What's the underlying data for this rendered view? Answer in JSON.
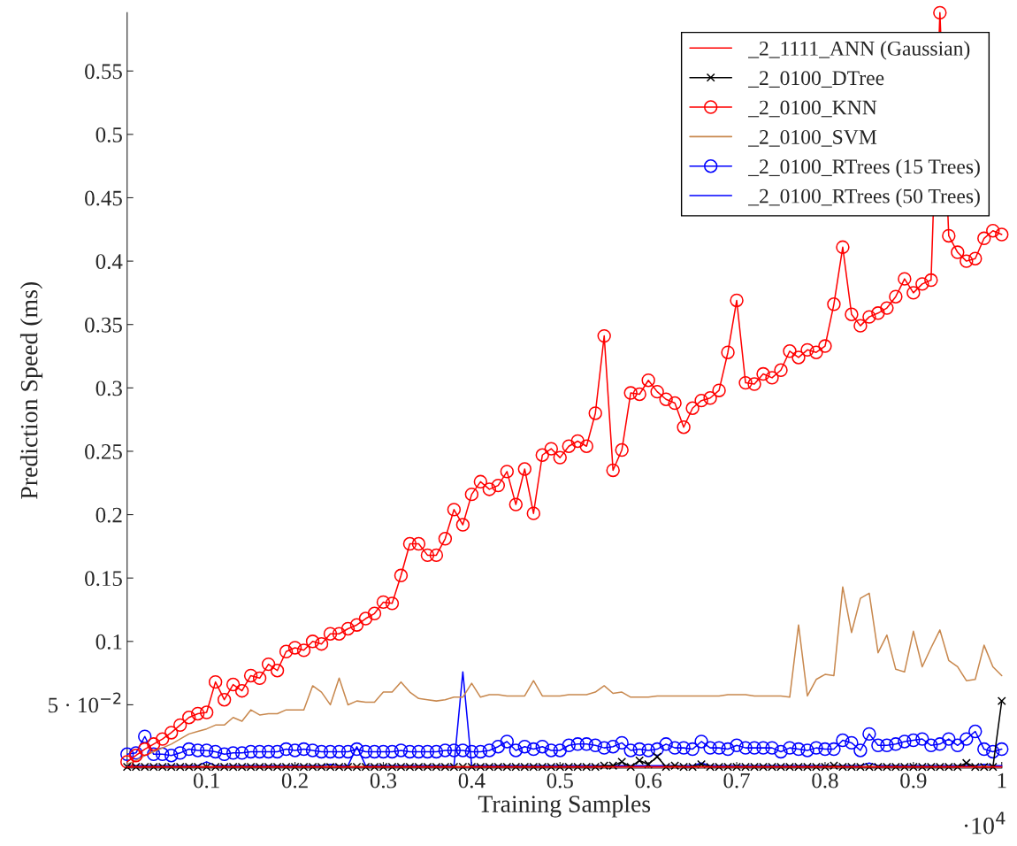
{
  "chart_data": {
    "type": "line",
    "xlabel": "Training Samples",
    "ylabel": "Prediction Speed (ms)",
    "x": [
      0.01,
      0.02,
      0.03,
      0.04,
      0.05,
      0.06,
      0.07,
      0.08,
      0.09,
      0.1,
      0.11,
      0.12,
      0.13,
      0.14,
      0.15,
      0.16,
      0.17,
      0.18,
      0.19,
      0.2,
      0.21,
      0.22,
      0.23,
      0.24,
      0.25,
      0.26,
      0.27,
      0.28,
      0.29,
      0.3,
      0.31,
      0.32,
      0.33,
      0.34,
      0.35,
      0.36,
      0.37,
      0.38,
      0.39,
      0.4,
      0.41,
      0.42,
      0.43,
      0.44,
      0.45,
      0.46,
      0.47,
      0.48,
      0.49,
      0.5,
      0.51,
      0.52,
      0.53,
      0.54,
      0.55,
      0.56,
      0.57,
      0.58,
      0.59,
      0.6,
      0.61,
      0.62,
      0.63,
      0.64,
      0.65,
      0.66,
      0.67,
      0.68,
      0.69,
      0.7,
      0.71,
      0.72,
      0.73,
      0.74,
      0.75,
      0.76,
      0.77,
      0.78,
      0.79,
      0.8,
      0.81,
      0.82,
      0.83,
      0.84,
      0.85,
      0.86,
      0.87,
      0.88,
      0.89,
      0.9,
      0.91,
      0.92,
      0.93,
      0.94,
      0.95,
      0.96,
      0.97,
      0.98,
      0.99,
      1
    ],
    "xlim": [
      0.01,
      1
    ],
    "ylim": [
      0,
      0.596
    ],
    "xticks": [
      0.1,
      0.2,
      0.3,
      0.4,
      0.5,
      0.6,
      0.7,
      0.8,
      0.9,
      1
    ],
    "yticks": [
      {
        "value": 0.05,
        "label": "5 · 10$^{−2}$"
      },
      0.1,
      0.15,
      0.2,
      0.25,
      0.3,
      0.35,
      0.4,
      0.45,
      0.5,
      0.55
    ],
    "annotations": [
      "·10$^{4}$"
    ],
    "legend": "top right",
    "grid": false,
    "series": [
      {
        "name": "_2_1111_ANN (Gaussian)",
        "color": "#ff0000",
        "marker": "none",
        "values": [
          0.001,
          0.001,
          0.001,
          0.001,
          0.001,
          0.001,
          0.001,
          0.001,
          0.001,
          0.001,
          0.001,
          0.001,
          0.001,
          0.001,
          0.001,
          0.001,
          0.001,
          0.001,
          0.001,
          0.001,
          0.001,
          0.001,
          0.001,
          0.001,
          0.001,
          0.001,
          0.001,
          0.001,
          0.001,
          0.001,
          0.001,
          0.001,
          0.001,
          0.001,
          0.001,
          0.001,
          0.001,
          0.001,
          0.001,
          0.001,
          0.001,
          0.001,
          0.001,
          0.001,
          0.001,
          0.001,
          0.001,
          0.001,
          0.001,
          0.001,
          0.001,
          0.001,
          0.001,
          0.001,
          0.001,
          0.001,
          0.001,
          0.001,
          0.001,
          0.001,
          0.001,
          0.001,
          0.001,
          0.001,
          0.001,
          0.001,
          0.001,
          0.001,
          0.001,
          0.001,
          0.001,
          0.001,
          0.001,
          0.001,
          0.001,
          0.001,
          0.001,
          0.001,
          0.001,
          0.001,
          0.001,
          0.001,
          0.001,
          0.001,
          0.001,
          0.001,
          0.001,
          0.001,
          0.001,
          0.001,
          0.001,
          0.001,
          0.001,
          0.001,
          0.001,
          0.001,
          0.001,
          0.001,
          0.001,
          0.001
        ]
      },
      {
        "name": "_2_0100_DTree",
        "color": "#000000",
        "marker": "cross",
        "values": [
          0.001,
          0.001,
          0.001,
          0.001,
          0.001,
          0.001,
          0.001,
          0.001,
          0.001,
          0.001,
          0.001,
          0.001,
          0.001,
          0.001,
          0.001,
          0.001,
          0.001,
          0.001,
          0.001,
          0.001,
          0.001,
          0.001,
          0.001,
          0.001,
          0.001,
          0.001,
          0.001,
          0.001,
          0.001,
          0.001,
          0.001,
          0.001,
          0.001,
          0.001,
          0.001,
          0.001,
          0.001,
          0.001,
          0.001,
          0.001,
          0.001,
          0.001,
          0.001,
          0.001,
          0.001,
          0.001,
          0.001,
          0.001,
          0.001,
          0.001,
          0.001,
          0.001,
          0.001,
          0.001,
          0.002,
          0.002,
          0.005,
          0.001,
          0.006,
          0.003,
          0.009,
          0.001,
          0.002,
          0.001,
          0.001,
          0.003,
          0.001,
          0.001,
          0.001,
          0.001,
          0.001,
          0.001,
          0.001,
          0.001,
          0.001,
          0.001,
          0.001,
          0.001,
          0.001,
          0.001,
          0.002,
          0.001,
          0.001,
          0.001,
          0.001,
          0.001,
          0.001,
          0.001,
          0.001,
          0.001,
          0.001,
          0.001,
          0.001,
          0.001,
          0.001,
          0.004,
          0.001,
          0.001,
          0.001,
          0.053
        ]
      },
      {
        "name": "_2_0100_KNN",
        "color": "#ff0000",
        "marker": "circle",
        "values": [
          0.005,
          0.01,
          0.015,
          0.019,
          0.023,
          0.028,
          0.034,
          0.04,
          0.043,
          0.044,
          0.068,
          0.054,
          0.066,
          0.061,
          0.073,
          0.071,
          0.082,
          0.077,
          0.092,
          0.095,
          0.093,
          0.1,
          0.098,
          0.106,
          0.106,
          0.11,
          0.113,
          0.118,
          0.122,
          0.131,
          0.13,
          0.152,
          0.177,
          0.177,
          0.168,
          0.168,
          0.181,
          0.204,
          0.192,
          0.216,
          0.226,
          0.22,
          0.223,
          0.234,
          0.208,
          0.236,
          0.201,
          0.247,
          0.252,
          0.245,
          0.254,
          0.258,
          0.254,
          0.28,
          0.341,
          0.235,
          0.251,
          0.296,
          0.295,
          0.306,
          0.297,
          0.291,
          0.288,
          0.269,
          0.284,
          0.29,
          0.292,
          0.298,
          0.328,
          0.369,
          0.304,
          0.303,
          0.311,
          0.308,
          0.314,
          0.329,
          0.324,
          0.33,
          0.328,
          0.333,
          0.366,
          0.411,
          0.358,
          0.349,
          0.356,
          0.359,
          0.363,
          0.372,
          0.386,
          0.375,
          0.382,
          0.385,
          0.596,
          0.42,
          0.407,
          0.4,
          0.402,
          0.418,
          0.424,
          0.421
        ]
      },
      {
        "name": "_2_0100_SVM",
        "color": "#c8884e",
        "marker": "none",
        "values": [
          0.003,
          0.006,
          0.01,
          0.013,
          0.016,
          0.019,
          0.023,
          0.027,
          0.029,
          0.031,
          0.034,
          0.034,
          0.04,
          0.037,
          0.046,
          0.042,
          0.043,
          0.043,
          0.046,
          0.046,
          0.046,
          0.065,
          0.06,
          0.05,
          0.071,
          0.05,
          0.053,
          0.052,
          0.052,
          0.06,
          0.06,
          0.068,
          0.06,
          0.055,
          0.054,
          0.053,
          0.054,
          0.056,
          0.056,
          0.067,
          0.056,
          0.058,
          0.058,
          0.057,
          0.057,
          0.057,
          0.069,
          0.057,
          0.057,
          0.057,
          0.058,
          0.058,
          0.058,
          0.06,
          0.065,
          0.059,
          0.06,
          0.056,
          0.056,
          0.056,
          0.057,
          0.057,
          0.057,
          0.057,
          0.057,
          0.057,
          0.057,
          0.057,
          0.058,
          0.058,
          0.058,
          0.057,
          0.057,
          0.057,
          0.057,
          0.056,
          0.113,
          0.057,
          0.07,
          0.074,
          0.073,
          0.143,
          0.107,
          0.134,
          0.138,
          0.091,
          0.105,
          0.078,
          0.076,
          0.108,
          0.08,
          0.095,
          0.109,
          0.085,
          0.08,
          0.069,
          0.07,
          0.097,
          0.08,
          0.073
        ]
      },
      {
        "name": "_2_0100_RTrees (15 Trees)",
        "color": "#0000ff",
        "marker": "circle",
        "values": [
          0.011,
          0.012,
          0.025,
          0.011,
          0.011,
          0.01,
          0.012,
          0.015,
          0.014,
          0.014,
          0.013,
          0.011,
          0.012,
          0.012,
          0.013,
          0.013,
          0.013,
          0.013,
          0.015,
          0.014,
          0.015,
          0.014,
          0.013,
          0.013,
          0.013,
          0.013,
          0.015,
          0.013,
          0.013,
          0.013,
          0.013,
          0.014,
          0.013,
          0.013,
          0.013,
          0.013,
          0.014,
          0.014,
          0.014,
          0.013,
          0.013,
          0.014,
          0.017,
          0.021,
          0.014,
          0.017,
          0.015,
          0.017,
          0.014,
          0.014,
          0.018,
          0.019,
          0.019,
          0.018,
          0.016,
          0.017,
          0.02,
          0.014,
          0.015,
          0.014,
          0.015,
          0.019,
          0.016,
          0.016,
          0.015,
          0.021,
          0.016,
          0.016,
          0.015,
          0.018,
          0.016,
          0.016,
          0.016,
          0.016,
          0.013,
          0.016,
          0.015,
          0.014,
          0.016,
          0.015,
          0.015,
          0.022,
          0.02,
          0.014,
          0.027,
          0.018,
          0.018,
          0.019,
          0.021,
          0.022,
          0.023,
          0.018,
          0.019,
          0.023,
          0.018,
          0.023,
          0.029,
          0.015,
          0.013,
          0.015
        ]
      },
      {
        "name": "_2_0100_RTrees (50 Trees)",
        "color": "#0000ff",
        "marker": "none",
        "values": [
          0.002,
          0.002,
          0.002,
          0.002,
          0.002,
          0.002,
          0.002,
          0.002,
          0.002,
          0.005,
          0.002,
          0.002,
          0.002,
          0.002,
          0.002,
          0.002,
          0.002,
          0.002,
          0.002,
          0.002,
          0.002,
          0.002,
          0.002,
          0.003,
          0.002,
          0.002,
          0.017,
          0.002,
          0.002,
          0.002,
          0.002,
          0.002,
          0.002,
          0.002,
          0.002,
          0.002,
          0.002,
          0.002,
          0.076,
          0.002,
          0.002,
          0.002,
          0.002,
          0.002,
          0.002,
          0.002,
          0.002,
          0.002,
          0.002,
          0.002,
          0.002,
          0.002,
          0.002,
          0.002,
          0.002,
          0.002,
          0.002,
          0.002,
          0.002,
          0.002,
          0.002,
          0.002,
          0.002,
          0.002,
          0.002,
          0.004,
          0.002,
          0.002,
          0.002,
          0.002,
          0.002,
          0.002,
          0.002,
          0.002,
          0.002,
          0.002,
          0.002,
          0.002,
          0.002,
          0.002,
          0.002,
          0.002,
          0.002,
          0.002,
          0.004,
          0.002,
          0.002,
          0.002,
          0.002,
          0.002,
          0.002,
          0.002,
          0.002,
          0.002,
          0.002,
          0.002,
          0.002,
          0.003,
          0.002,
          0.002
        ]
      }
    ]
  }
}
